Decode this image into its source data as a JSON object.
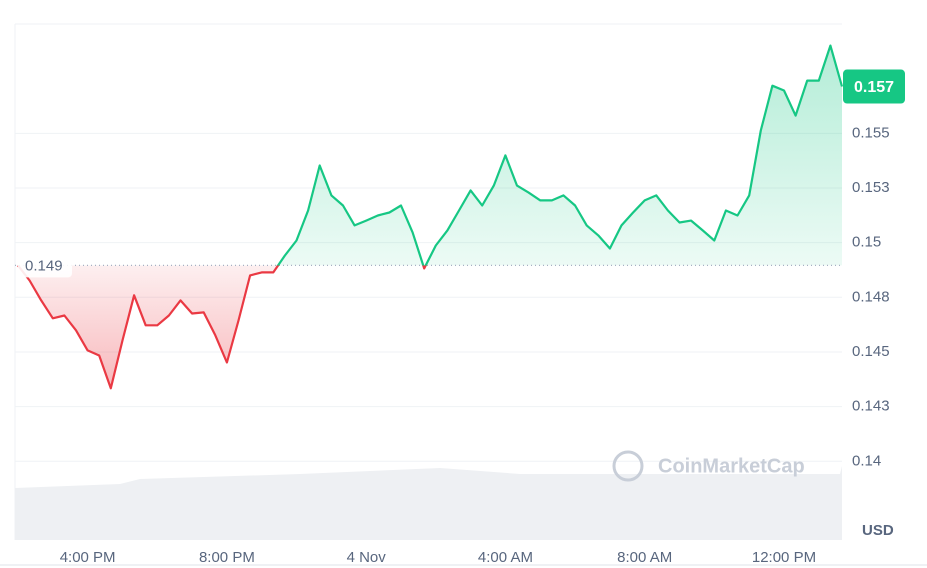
{
  "chart_data": {
    "type": "line",
    "unit_label": "USD",
    "watermark": "CoinMarketCap",
    "categories": [
      null,
      null,
      null,
      null,
      null,
      null,
      "4:00 PM",
      null,
      null,
      null,
      null,
      null,
      null,
      null,
      null,
      null,
      null,
      null,
      "8:00 PM",
      null,
      null,
      null,
      null,
      null,
      null,
      null,
      null,
      null,
      null,
      null,
      "4 Nov",
      null,
      null,
      null,
      null,
      null,
      null,
      null,
      null,
      null,
      null,
      null,
      "4:00 AM",
      null,
      null,
      null,
      null,
      null,
      null,
      null,
      null,
      null,
      null,
      null,
      "8:00 AM",
      null,
      null,
      null,
      null,
      null,
      null,
      null,
      null,
      null,
      null,
      null,
      "12:00 PM",
      null,
      null,
      null,
      null,
      null
    ],
    "values": [
      0.14896,
      0.14827,
      0.14736,
      0.14654,
      0.14667,
      0.14599,
      0.14507,
      0.14484,
      0.14334,
      0.14553,
      0.14759,
      0.14622,
      0.14622,
      0.14667,
      0.14736,
      0.14676,
      0.14681,
      0.14576,
      0.14452,
      0.14644,
      0.1485,
      0.14864,
      0.14864,
      0.14941,
      0.1501,
      0.15147,
      0.15353,
      0.15216,
      0.1517,
      0.15079,
      0.15101,
      0.15124,
      0.15138,
      0.1517,
      0.15047,
      0.14882,
      0.14987,
      0.15056,
      0.15147,
      0.15239,
      0.1517,
      0.15261,
      0.15399,
      0.15261,
      0.15229,
      0.15193,
      0.15193,
      0.15216,
      0.1517,
      0.15079,
      0.15033,
      0.14973,
      0.15079,
      0.15138,
      0.15193,
      0.15216,
      0.15147,
      0.15092,
      0.15101,
      0.15056,
      0.1501,
      0.15147,
      0.15124,
      0.15216,
      0.15513,
      0.15718,
      0.15696,
      0.15581,
      0.15741,
      0.15741,
      0.15901,
      0.15714
    ],
    "baseline": {
      "value": 0.14896,
      "label": "0.149"
    },
    "current_price": {
      "value": 0.15714,
      "label": "0.157"
    },
    "up_color": "#16c784",
    "down_color": "#ea3943",
    "ylim": [
      0.1364,
      0.16
    ],
    "yticks": [
      0.14,
      {
        "value": 0.1425,
        "label": "0.143"
      },
      0.145,
      {
        "value": 0.1475,
        "label": "0.148"
      },
      0.15,
      {
        "value": 0.1525,
        "label": "0.153"
      },
      0.155
    ],
    "grid": true
  }
}
